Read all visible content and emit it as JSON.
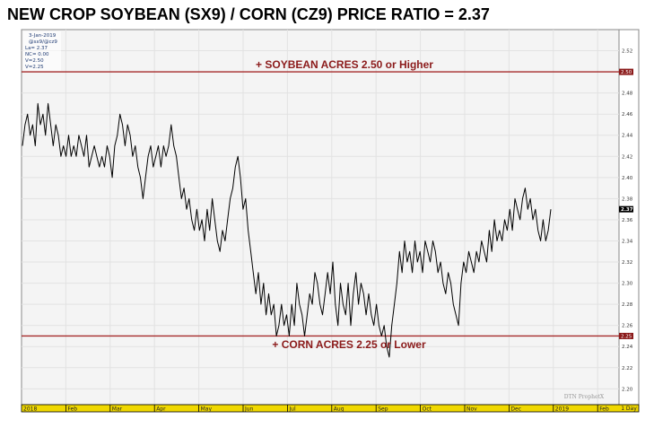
{
  "title": "NEW CROP SOYBEAN (SX9) / CORN (CZ9) PRICE RATIO = 2.37",
  "info_panel": {
    "date": "3-Jan-2019",
    "symbol": "@sx9/@cz9",
    "last": "La= 2.37",
    "net_change": "NC= 0.00",
    "v1": "V=2.50",
    "v2": "V=2.25"
  },
  "watermark": "DTN ProphetX",
  "corner_label": "1 Day",
  "annotations": {
    "upper": "+ SOYBEAN ACRES 2.50 or Higher",
    "lower": "+ CORN ACRES 2.25 or Lower"
  },
  "colors": {
    "reference_line": "#a52a2a",
    "series_line": "#000000",
    "date_bar": "#f0d800"
  },
  "chart_data": {
    "type": "line",
    "title": "NEW CROP SOYBEAN (SX9) / CORN (CZ9) PRICE RATIO = 2.37",
    "xlabel": "",
    "ylabel": "",
    "ylim": [
      2.185,
      2.54
    ],
    "y_ticks": [
      "2.52",
      "2.50",
      "2.48",
      "2.46",
      "2.44",
      "2.42",
      "2.40",
      "2.38",
      "2.37",
      "2.36",
      "2.34",
      "2.32",
      "2.30",
      "2.28",
      "2.26",
      "2.25",
      "2.24",
      "2.22",
      "2.20"
    ],
    "x_ticks": [
      "2018",
      "Feb",
      "Mar",
      "Apr",
      "May",
      "Jun",
      "Jul",
      "Aug",
      "Sep",
      "Oct",
      "Nov",
      "Dec",
      "2019",
      "Feb",
      "Mar"
    ],
    "reference_lines": [
      {
        "value": 2.5,
        "label": "2.50"
      },
      {
        "value": 2.25,
        "label": "2.25"
      }
    ],
    "last_value": {
      "value": 2.37,
      "label": "2.37"
    },
    "grid": true,
    "series": [
      {
        "values": [
          2.43,
          2.45,
          2.46,
          2.44,
          2.45,
          2.43,
          2.47,
          2.45,
          2.46,
          2.44,
          2.47,
          2.45,
          2.43,
          2.45,
          2.44,
          2.42,
          2.43,
          2.42,
          2.44,
          2.42,
          2.43,
          2.42,
          2.44,
          2.43,
          2.42,
          2.44,
          2.41,
          2.42,
          2.43,
          2.42,
          2.41,
          2.42,
          2.41,
          2.43,
          2.42,
          2.4,
          2.43,
          2.44,
          2.46,
          2.45,
          2.43,
          2.45,
          2.44,
          2.42,
          2.43,
          2.41,
          2.4,
          2.38,
          2.4,
          2.42,
          2.43,
          2.41,
          2.42,
          2.43,
          2.41,
          2.43,
          2.42,
          2.43,
          2.45,
          2.43,
          2.42,
          2.4,
          2.38,
          2.39,
          2.37,
          2.38,
          2.36,
          2.35,
          2.37,
          2.35,
          2.36,
          2.34,
          2.37,
          2.35,
          2.38,
          2.36,
          2.34,
          2.33,
          2.35,
          2.34,
          2.36,
          2.38,
          2.39,
          2.41,
          2.42,
          2.4,
          2.37,
          2.38,
          2.35,
          2.33,
          2.31,
          2.29,
          2.31,
          2.28,
          2.3,
          2.27,
          2.29,
          2.27,
          2.28,
          2.25,
          2.26,
          2.28,
          2.26,
          2.27,
          2.25,
          2.28,
          2.26,
          2.3,
          2.28,
          2.27,
          2.25,
          2.27,
          2.29,
          2.28,
          2.31,
          2.3,
          2.28,
          2.27,
          2.29,
          2.31,
          2.29,
          2.32,
          2.28,
          2.26,
          2.3,
          2.28,
          2.27,
          2.3,
          2.26,
          2.29,
          2.31,
          2.28,
          2.3,
          2.29,
          2.27,
          2.29,
          2.27,
          2.26,
          2.28,
          2.26,
          2.25,
          2.26,
          2.24,
          2.23,
          2.26,
          2.28,
          2.3,
          2.33,
          2.31,
          2.34,
          2.32,
          2.33,
          2.31,
          2.34,
          2.32,
          2.33,
          2.31,
          2.34,
          2.33,
          2.32,
          2.34,
          2.33,
          2.31,
          2.32,
          2.3,
          2.29,
          2.31,
          2.3,
          2.28,
          2.27,
          2.26,
          2.3,
          2.32,
          2.31,
          2.33,
          2.32,
          2.31,
          2.33,
          2.32,
          2.34,
          2.33,
          2.32,
          2.35,
          2.33,
          2.36,
          2.34,
          2.35,
          2.34,
          2.36,
          2.35,
          2.37,
          2.35,
          2.38,
          2.37,
          2.36,
          2.38,
          2.39,
          2.37,
          2.38,
          2.36,
          2.37,
          2.35,
          2.34,
          2.36,
          2.34,
          2.35,
          2.37
        ]
      }
    ]
  }
}
